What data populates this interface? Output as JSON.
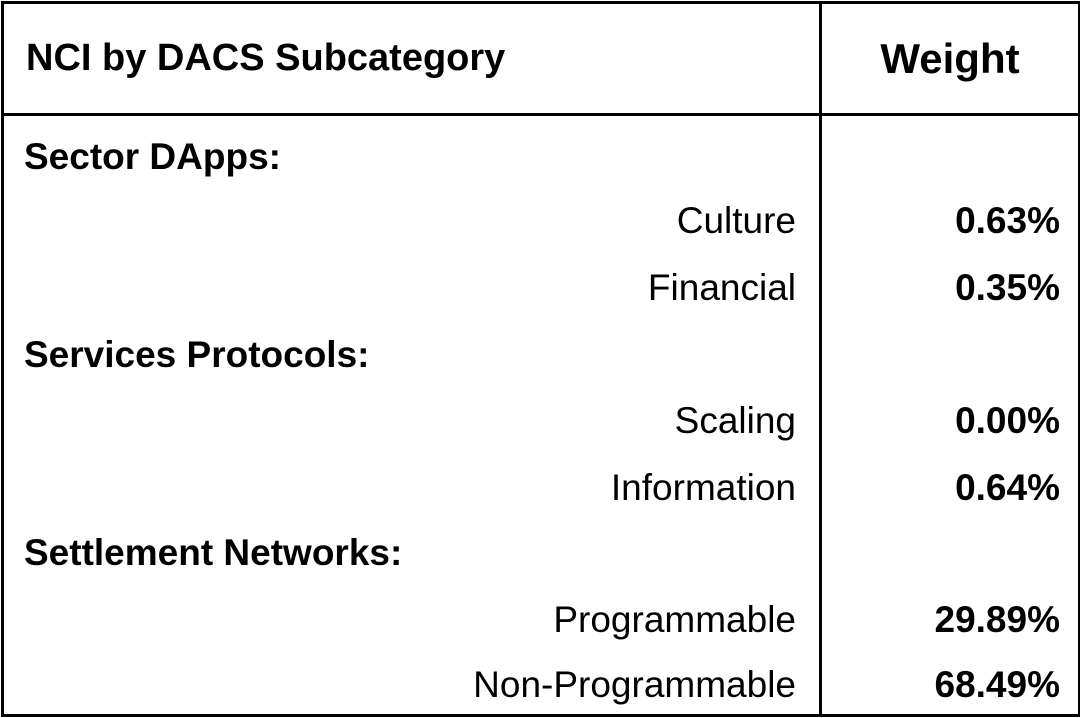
{
  "table": {
    "header": {
      "category": "NCI by DACS Subcategory",
      "weight": "Weight"
    },
    "groups": [
      {
        "label": "Sector DApps:",
        "items": [
          {
            "name": "Culture",
            "weight": "0.63%"
          },
          {
            "name": "Financial",
            "weight": "0.35%"
          }
        ]
      },
      {
        "label": "Services Protocols:",
        "items": [
          {
            "name": "Scaling",
            "weight": "0.00%"
          },
          {
            "name": "Information",
            "weight": "0.64%"
          }
        ]
      },
      {
        "label": "Settlement Networks:",
        "items": [
          {
            "name": "Programmable",
            "weight": "29.89%"
          },
          {
            "name": "Non-Programmable",
            "weight": "68.49%"
          }
        ]
      }
    ]
  }
}
